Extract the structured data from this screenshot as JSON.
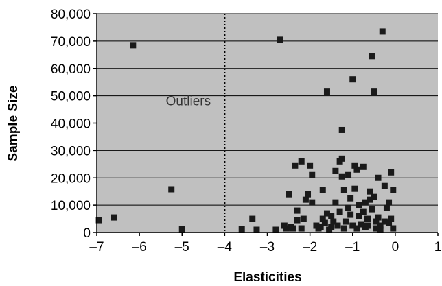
{
  "chart_data": {
    "type": "scatter",
    "title": "",
    "xlabel": "Elasticities",
    "ylabel": "Sample Size",
    "xlim": [
      -7,
      1
    ],
    "ylim": [
      0,
      80000
    ],
    "x_ticks": [
      -7,
      -6,
      -5,
      -4,
      -3,
      -2,
      -1,
      0,
      1
    ],
    "x_tick_labels": [
      "–7",
      "–6",
      "–5",
      "–4",
      "–3",
      "–2",
      "–1",
      "0",
      "1"
    ],
    "y_ticks": [
      0,
      10000,
      20000,
      30000,
      40000,
      50000,
      60000,
      70000,
      80000
    ],
    "y_tick_labels": [
      "0",
      "10,000",
      "20,000",
      "30,000",
      "40,000",
      "50,000",
      "60,000",
      "70,000",
      "80,000"
    ],
    "grid": "horizontal",
    "legend": "none",
    "plot_background": "#c0c0c0",
    "marker_color": "#1a1a1a",
    "reference_line": {
      "x": -4,
      "style": "dotted",
      "color": "#000000"
    },
    "annotations": [
      {
        "text": "Outliers",
        "x": -3.9,
        "y": 46500
      }
    ],
    "points": [
      [
        -6.95,
        4500
      ],
      [
        -6.6,
        5500
      ],
      [
        -6.15,
        68500
      ],
      [
        -5.25,
        15800
      ],
      [
        -5.0,
        1200
      ],
      [
        -3.6,
        1200
      ],
      [
        -3.35,
        5000
      ],
      [
        -3.25,
        1000
      ],
      [
        -2.8,
        1000
      ],
      [
        -2.7,
        70500
      ],
      [
        -2.6,
        2500
      ],
      [
        -2.55,
        1500
      ],
      [
        -2.5,
        14000
      ],
      [
        -2.45,
        2000
      ],
      [
        -2.4,
        1500
      ],
      [
        -2.35,
        24500
      ],
      [
        -2.3,
        8000
      ],
      [
        -2.3,
        4500
      ],
      [
        -2.2,
        26000
      ],
      [
        -2.2,
        1500
      ],
      [
        -2.15,
        5000
      ],
      [
        -2.1,
        12000
      ],
      [
        -2.05,
        14000
      ],
      [
        -2.0,
        24500
      ],
      [
        -1.95,
        21000
      ],
      [
        -1.85,
        2500
      ],
      [
        -1.8,
        1500
      ],
      [
        -1.75,
        2000
      ],
      [
        -1.7,
        5000
      ],
      [
        -1.65,
        3500
      ],
      [
        -1.6,
        7000
      ],
      [
        -1.6,
        51500
      ],
      [
        -1.5,
        2000
      ],
      [
        -1.5,
        6000
      ],
      [
        -1.45,
        4000
      ],
      [
        -1.4,
        11000
      ],
      [
        -1.4,
        22500
      ],
      [
        -1.35,
        2500
      ],
      [
        -1.3,
        7500
      ],
      [
        -1.3,
        26000
      ],
      [
        -1.25,
        27000
      ],
      [
        -1.25,
        37500
      ],
      [
        -1.25,
        20500
      ],
      [
        -1.2,
        15500
      ],
      [
        -1.2,
        1500
      ],
      [
        -1.15,
        4000
      ],
      [
        -1.1,
        9000
      ],
      [
        -1.1,
        21000
      ],
      [
        -1.05,
        12500
      ],
      [
        -1.05,
        6500
      ],
      [
        -1.0,
        56000
      ],
      [
        -1.0,
        2500
      ],
      [
        -0.95,
        16000
      ],
      [
        -0.95,
        24500
      ],
      [
        -0.9,
        23000
      ],
      [
        -0.9,
        1500
      ],
      [
        -0.85,
        6000
      ],
      [
        -0.85,
        10000
      ],
      [
        -0.8,
        3000
      ],
      [
        -0.75,
        24000
      ],
      [
        -0.75,
        7500
      ],
      [
        -0.7,
        11000
      ],
      [
        -0.7,
        2000
      ],
      [
        -0.65,
        5000
      ],
      [
        -0.6,
        12000
      ],
      [
        -0.6,
        15000
      ],
      [
        -0.55,
        64500
      ],
      [
        -0.55,
        8500
      ],
      [
        -0.5,
        51500
      ],
      [
        -0.5,
        13000
      ],
      [
        -0.45,
        4000
      ],
      [
        -0.45,
        1500
      ],
      [
        -0.4,
        20000
      ],
      [
        -0.4,
        5500
      ],
      [
        -0.35,
        2500
      ],
      [
        -0.3,
        73500
      ],
      [
        -0.25,
        17000
      ],
      [
        -0.25,
        4000
      ],
      [
        -0.2,
        9000
      ],
      [
        -0.15,
        11000
      ],
      [
        -0.1,
        22000
      ],
      [
        -0.1,
        5000
      ],
      [
        -0.05,
        15500
      ],
      [
        -0.05,
        1500
      ],
      [
        -1.95,
        11000
      ],
      [
        -1.55,
        1000
      ],
      [
        -0.65,
        2500
      ],
      [
        -0.15,
        3500
      ],
      [
        -1.7,
        15500
      ],
      [
        -0.35,
        1000
      ]
    ]
  }
}
